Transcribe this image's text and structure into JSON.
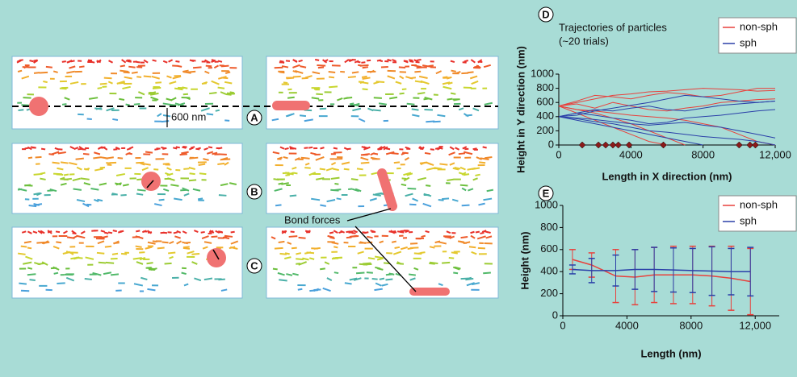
{
  "annotations": {
    "panels": [
      "A",
      "B",
      "C"
    ],
    "scale": "600 nm",
    "bond": "Bond forces"
  },
  "chart_data": [
    {
      "type": "line",
      "panel": "D",
      "title": "Trajectories of particles",
      "subtitle": "(~20 trials)",
      "xlabel": "Length in X direction (nm)",
      "ylabel": "Height in Y direction (nm)",
      "xlim": [
        0,
        12000
      ],
      "xticks": [
        0,
        4000,
        8000,
        {
          "value": 12000,
          "label": "12,000"
        }
      ],
      "ylim": [
        0,
        1000
      ],
      "yticks": [
        0,
        200,
        400,
        600,
        800,
        1000
      ],
      "x": [
        0,
        1000,
        2000,
        3000,
        4000,
        5000,
        6000,
        7000,
        8000,
        9000,
        10000,
        11000,
        12000
      ],
      "series": [
        {
          "name": "non-sph",
          "color": "#e8413c",
          "trajectories": [
            [
              550,
              600,
              650,
              700,
              720,
              750,
              760,
              780,
              800,
              790,
              780,
              760,
              770
            ],
            [
              550,
              500,
              450,
              380,
              300,
              200,
              100,
              0,
              null,
              null,
              null,
              null,
              null
            ],
            [
              550,
              450,
              350,
              250,
              150,
              50,
              0,
              null,
              null,
              null,
              null,
              null,
              null
            ],
            [
              550,
              580,
              520,
              600,
              550,
              500,
              480,
              520,
              550,
              600,
              620,
              640,
              650
            ],
            [
              550,
              500,
              480,
              450,
              420,
              400,
              380,
              350,
              300,
              250,
              150,
              50,
              0
            ],
            [
              550,
              620,
              700,
              680,
              650,
              700,
              740,
              720,
              680,
              700,
              750,
              800,
              800
            ]
          ]
        },
        {
          "name": "sph",
          "color": "#2a3fa8",
          "trajectories": [
            [
              400,
              450,
              420,
              380,
              350,
              300,
              320,
              380,
              400,
              420,
              450,
              480,
              500
            ],
            [
              400,
              350,
              300,
              250,
              200,
              150,
              100,
              50,
              0,
              null,
              null,
              null,
              null
            ],
            [
              400,
              420,
              480,
              520,
              560,
              600,
              650,
              700,
              680,
              650,
              620,
              600,
              620
            ],
            [
              400,
              380,
              360,
              330,
              300,
              280,
              300,
              320,
              280,
              250,
              200,
              150,
              100
            ],
            [
              400,
              450,
              500,
              480,
              520,
              550,
              500,
              480,
              520,
              560,
              580,
              600,
              620
            ],
            [
              400,
              370,
              330,
              300,
              250,
              200,
              180,
              150,
              120,
              100,
              80,
              50,
              0
            ]
          ]
        }
      ],
      "markers": {
        "color": "#8b1a1a",
        "x": [
          1300,
          2200,
          2600,
          3000,
          3300,
          3900,
          5800,
          10000,
          10600,
          10900
        ],
        "y": [
          0,
          0,
          0,
          0,
          0,
          0,
          0,
          0,
          0,
          0
        ]
      },
      "legend": "upper right"
    },
    {
      "type": "errorbar",
      "panel": "E",
      "xlabel": "Length (nm)",
      "ylabel": "Height (nm)",
      "xlim": [
        0,
        13500
      ],
      "xticks": [
        0,
        4000,
        8000,
        {
          "value": 12000,
          "label": "12,000"
        }
      ],
      "ylim": [
        0,
        1000
      ],
      "yticks": [
        0,
        200,
        400,
        600,
        800,
        1000
      ],
      "x": [
        600,
        1800,
        3300,
        4500,
        5700,
        6900,
        8100,
        9300,
        10500,
        11700
      ],
      "series": [
        {
          "name": "non-sph",
          "color": "#e8413c",
          "values": [
            510,
            460,
            360,
            350,
            370,
            370,
            370,
            360,
            340,
            310
          ],
          "errors": [
            90,
            110,
            240,
            250,
            250,
            260,
            260,
            270,
            290,
            300
          ]
        },
        {
          "name": "sph",
          "color": "#2a3fa8",
          "values": [
            420,
            410,
            410,
            420,
            420,
            415,
            410,
            405,
            400,
            400
          ],
          "errors": [
            40,
            110,
            140,
            180,
            200,
            200,
            200,
            220,
            210,
            220
          ]
        }
      ],
      "legend": "upper right"
    }
  ]
}
